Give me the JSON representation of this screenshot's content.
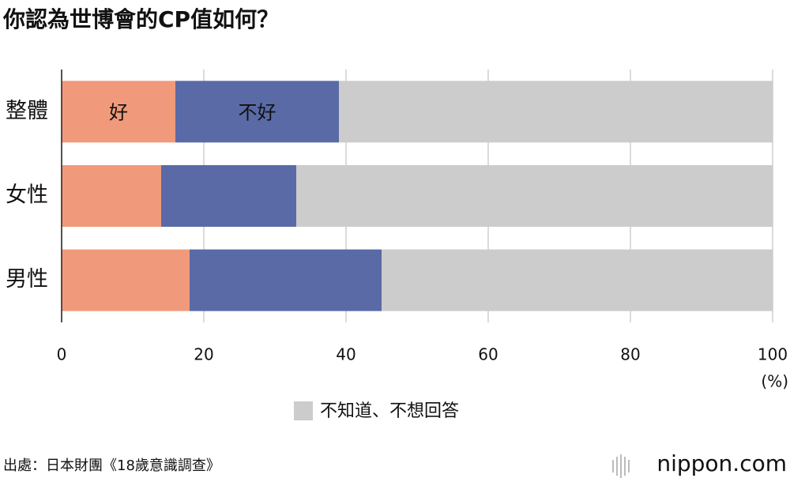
{
  "chart_data": {
    "type": "stacked-bar-horizontal",
    "title": "你認為世博會的CP值如何？",
    "categories": [
      "整體",
      "女性",
      "男性"
    ],
    "series": [
      {
        "name": "好",
        "color": "#f09a7b",
        "values": [
          16,
          14,
          18
        ]
      },
      {
        "name": "不好",
        "color": "#5a6aa6",
        "values": [
          23,
          19,
          27
        ]
      },
      {
        "name": "不知道、不想回答",
        "color": "#cccccc",
        "values": [
          61,
          67,
          55
        ]
      }
    ],
    "xlim": [
      0,
      100
    ],
    "xticks": [
      0,
      20,
      40,
      60,
      80,
      100
    ],
    "x_unit": "(%)",
    "grid": true
  },
  "source": "出處：日本財團《18歲意識調查》",
  "logo": "nippon.com"
}
